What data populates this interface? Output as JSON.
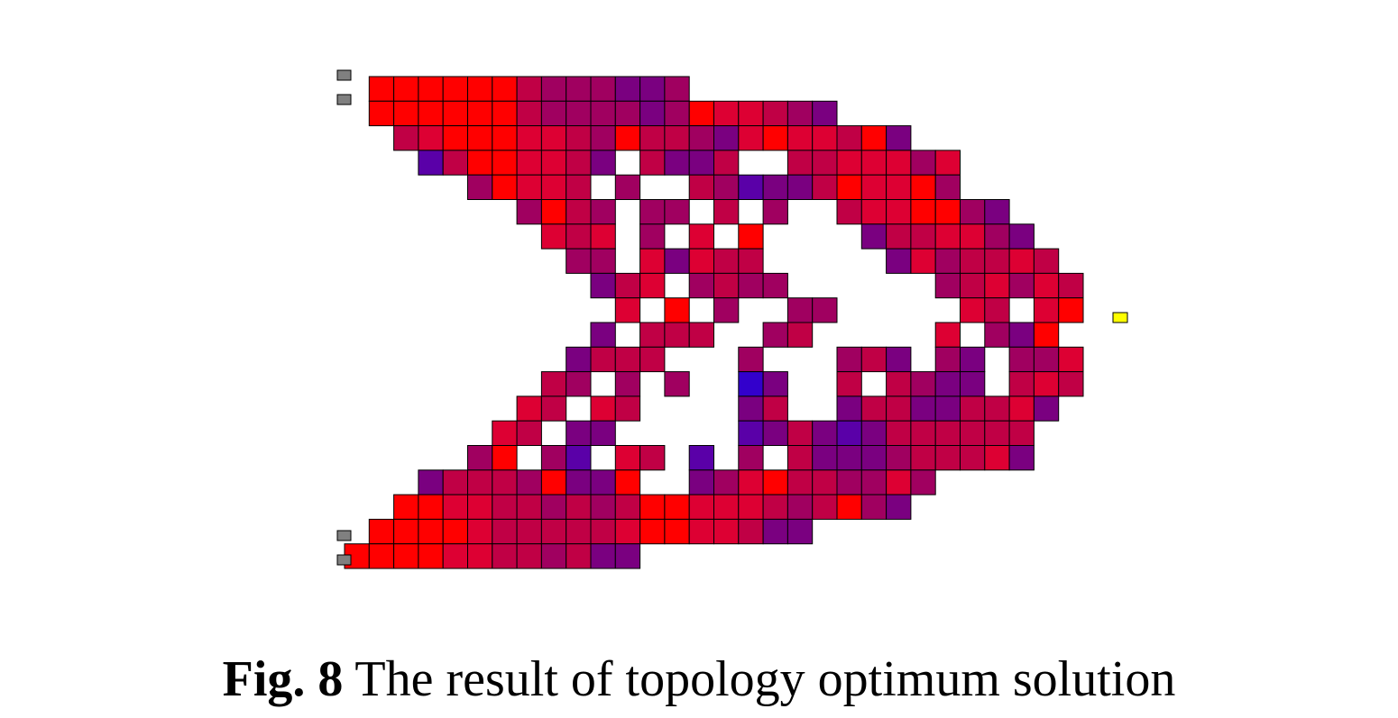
{
  "caption": {
    "label": "Fig. 8",
    "text": " The result of topology optimum solution"
  },
  "colors": {
    "support": "#808080",
    "load": "#ffff00",
    "cell_stroke": "#000000",
    "scale_high": "#ff0000",
    "scale_low": "#3300cc"
  },
  "mesh": {
    "legend": {
      "R": "#ff0000",
      "r": "#dd0033",
      "m": "#c00045",
      "p": "#a00060",
      "v": "#7a0080",
      "u": "#5a00a8",
      "b": "#3300cc"
    },
    "rows": [
      ".RRRRRRmpppvvp................",
      ".RRRRRRmppppvpRrrmpv..........",
      "..mrRRRrrmpRmmpvrRrrmRv.......",
      "...umRRrrmv.mvvm..mmrrrpr.....",
      ".....pRrrm.p..mpuvvmRrrRp.....",
      ".......pRmp.pp.m.p..mrrRRpv...",
      "........rmr.p.r.R....vmmrrpv..",
      ".........pp.rvrmm.....vrpmmrm.",
      "..........vmr.pmpp......pmrprm",
      "...........r.R.p..pp.....rm.rR",
      "..........v.mmm..pm.....r.pvR.",
      ".........vmmm...p...pmv.pv.ppr",
      "........mp.p.p..bv..m.mpvv.mrm",
      ".......rm.rm....vm..vmmvvmmrv.",
      "......rm.vv.....uvmvuvmmmmmm..",
      ".....pR.pu.rm.u.p.mvvvpmmmrv..",
      "...vmmmpRvvR..vprRmmpprp......",
      "..RRrrmmpmpmRRrrrmpmRpv.......",
      ".RRRRrmmmmmrRRrrmvv...........",
      "RRRRrrmmpmvv.................."
    ]
  }
}
